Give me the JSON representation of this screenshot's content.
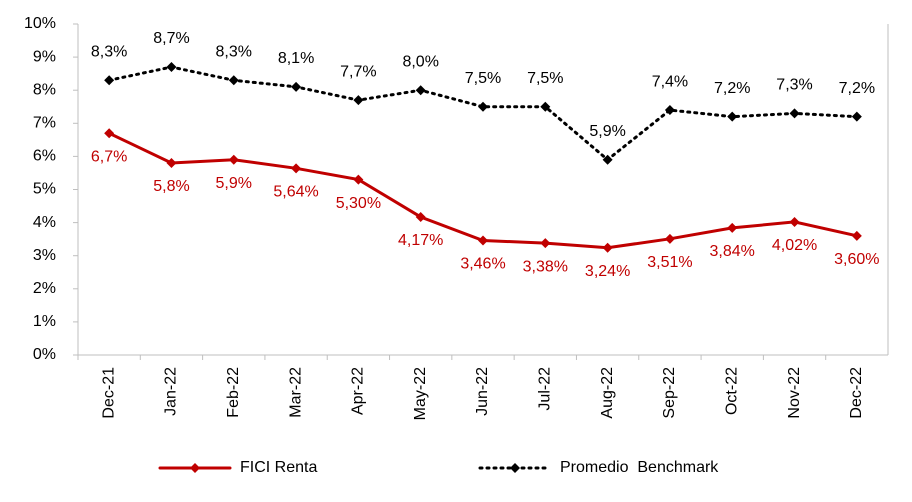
{
  "chart_data": {
    "type": "line",
    "categories": [
      "Dec-21",
      "Jan-22",
      "Feb-22",
      "Mar-22",
      "Apr-22",
      "May-22",
      "Jun-22",
      "Jul-22",
      "Aug-22",
      "Sep-22",
      "Oct-22",
      "Nov-22",
      "Dec-22"
    ],
    "series": [
      {
        "name": "FICI Renta",
        "color": "#c00000",
        "dashed": false,
        "values": [
          6.7,
          5.8,
          5.9,
          5.64,
          5.3,
          4.17,
          3.46,
          3.38,
          3.24,
          3.51,
          3.84,
          4.02,
          3.6
        ],
        "value_labels": [
          "6,7%",
          "5,8%",
          "5,9%",
          "5,64%",
          "5,30%",
          "4,17%",
          "3,46%",
          "3,38%",
          "3,24%",
          "3,51%",
          "3,84%",
          "4,02%",
          "3,60%"
        ]
      },
      {
        "name": "Promedio  Benchmark",
        "color": "#000000",
        "dashed": true,
        "values": [
          8.3,
          8.7,
          8.3,
          8.1,
          7.7,
          8.0,
          7.5,
          7.5,
          5.9,
          7.4,
          7.2,
          7.3,
          7.2
        ],
        "value_labels": [
          "8,3%",
          "8,7%",
          "8,3%",
          "8,1%",
          "7,7%",
          "8,0%",
          "7,5%",
          "7,5%",
          "5,9%",
          "7,4%",
          "7,2%",
          "7,3%",
          "7,2%"
        ]
      }
    ],
    "ylim": [
      0,
      10
    ],
    "yticks": [
      {
        "value": 0,
        "label": "0%"
      },
      {
        "value": 1,
        "label": "1%"
      },
      {
        "value": 2,
        "label": "2%"
      },
      {
        "value": 3,
        "label": "3%"
      },
      {
        "value": 4,
        "label": "4%"
      },
      {
        "value": 5,
        "label": "5%"
      },
      {
        "value": 6,
        "label": "6%"
      },
      {
        "value": 7,
        "label": "7%"
      },
      {
        "value": 8,
        "label": "8%"
      },
      {
        "value": 9,
        "label": "9%"
      },
      {
        "value": 10,
        "label": "10%"
      }
    ],
    "legend": "bottom"
  }
}
